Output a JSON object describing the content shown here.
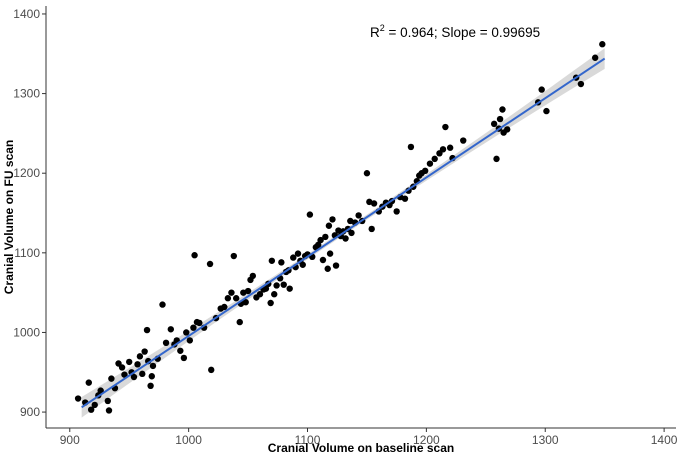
{
  "chart_data": {
    "type": "scatter",
    "xlabel": "Cranial Volume on baseline scan",
    "ylabel": "Cranial Volume on FU scan",
    "xlim": [
      880,
      1410
    ],
    "ylim": [
      880,
      1410
    ],
    "x_ticks": [
      "900",
      "1000",
      "1100",
      "1200",
      "1300",
      "1400"
    ],
    "y_ticks": [
      "900",
      "1000",
      "1100",
      "1200",
      "1300",
      "1400"
    ],
    "annotation": {
      "r_label": "R",
      "r_superscript": "2",
      "rest": " = 0.964; Slope = 0.99695"
    },
    "grid": false,
    "legend": "none",
    "fit_line": {
      "x0": 910,
      "y0": 906,
      "x1": 1350,
      "y1": 1344
    },
    "colors": {
      "points": "#000000",
      "fit": "#3366cc",
      "band": "#bfbfbf"
    },
    "points": [
      [
        907,
        917
      ],
      [
        913,
        912
      ],
      [
        916,
        937
      ],
      [
        918,
        903
      ],
      [
        921,
        909
      ],
      [
        924,
        921
      ],
      [
        926,
        927
      ],
      [
        932,
        914
      ],
      [
        933,
        902
      ],
      [
        935,
        942
      ],
      [
        938,
        930
      ],
      [
        941,
        961
      ],
      [
        944,
        956
      ],
      [
        946,
        947
      ],
      [
        950,
        963
      ],
      [
        952,
        950
      ],
      [
        954,
        944
      ],
      [
        957,
        960
      ],
      [
        959,
        970
      ],
      [
        961,
        948
      ],
      [
        963,
        976
      ],
      [
        965,
        1003
      ],
      [
        966,
        964
      ],
      [
        968,
        933
      ],
      [
        969,
        945
      ],
      [
        970,
        958
      ],
      [
        974,
        967
      ],
      [
        978,
        1035
      ],
      [
        981,
        987
      ],
      [
        985,
        1004
      ],
      [
        988,
        985
      ],
      [
        990,
        990
      ],
      [
        993,
        977
      ],
      [
        996,
        968
      ],
      [
        998,
        1000
      ],
      [
        1001,
        990
      ],
      [
        1004,
        1006
      ],
      [
        1005,
        1097
      ],
      [
        1007,
        1013
      ],
      [
        1009,
        1012
      ],
      [
        1013,
        1006
      ],
      [
        1018,
        1086
      ],
      [
        1019,
        953
      ],
      [
        1023,
        1018
      ],
      [
        1027,
        1030
      ],
      [
        1030,
        1032
      ],
      [
        1033,
        1043
      ],
      [
        1036,
        1050
      ],
      [
        1038,
        1096
      ],
      [
        1040,
        1043
      ],
      [
        1043,
        1013
      ],
      [
        1044,
        1036
      ],
      [
        1046,
        1050
      ],
      [
        1048,
        1038
      ],
      [
        1050,
        1052
      ],
      [
        1052,
        1066
      ],
      [
        1054,
        1071
      ],
      [
        1057,
        1044
      ],
      [
        1060,
        1048
      ],
      [
        1063,
        1054
      ],
      [
        1065,
        1055
      ],
      [
        1067,
        1061
      ],
      [
        1069,
        1037
      ],
      [
        1070,
        1090
      ],
      [
        1072,
        1048
      ],
      [
        1074,
        1059
      ],
      [
        1077,
        1068
      ],
      [
        1078,
        1088
      ],
      [
        1080,
        1060
      ],
      [
        1082,
        1076
      ],
      [
        1084,
        1078
      ],
      [
        1085,
        1055
      ],
      [
        1088,
        1094
      ],
      [
        1090,
        1082
      ],
      [
        1092,
        1099
      ],
      [
        1094,
        1090
      ],
      [
        1096,
        1085
      ],
      [
        1098,
        1096
      ],
      [
        1100,
        1098
      ],
      [
        1102,
        1148
      ],
      [
        1104,
        1095
      ],
      [
        1107,
        1107
      ],
      [
        1109,
        1110
      ],
      [
        1111,
        1116
      ],
      [
        1113,
        1091
      ],
      [
        1115,
        1120
      ],
      [
        1117,
        1080
      ],
      [
        1118,
        1134
      ],
      [
        1119,
        1099
      ],
      [
        1121,
        1142
      ],
      [
        1123,
        1122
      ],
      [
        1124,
        1084
      ],
      [
        1126,
        1128
      ],
      [
        1128,
        1121
      ],
      [
        1130,
        1127
      ],
      [
        1132,
        1118
      ],
      [
        1134,
        1130
      ],
      [
        1136,
        1140
      ],
      [
        1137,
        1125
      ],
      [
        1140,
        1138
      ],
      [
        1143,
        1147
      ],
      [
        1146,
        1140
      ],
      [
        1150,
        1200
      ],
      [
        1152,
        1164
      ],
      [
        1154,
        1130
      ],
      [
        1156,
        1162
      ],
      [
        1160,
        1152
      ],
      [
        1163,
        1158
      ],
      [
        1166,
        1163
      ],
      [
        1169,
        1160
      ],
      [
        1171,
        1165
      ],
      [
        1175,
        1152
      ],
      [
        1178,
        1170
      ],
      [
        1182,
        1168
      ],
      [
        1185,
        1178
      ],
      [
        1187,
        1233
      ],
      [
        1189,
        1183
      ],
      [
        1192,
        1190
      ],
      [
        1194,
        1197
      ],
      [
        1196,
        1200
      ],
      [
        1199,
        1203
      ],
      [
        1203,
        1212
      ],
      [
        1207,
        1218
      ],
      [
        1211,
        1225
      ],
      [
        1214,
        1230
      ],
      [
        1216,
        1258
      ],
      [
        1220,
        1232
      ],
      [
        1222,
        1219
      ],
      [
        1231,
        1241
      ],
      [
        1257,
        1262
      ],
      [
        1259,
        1218
      ],
      [
        1261,
        1256
      ],
      [
        1262,
        1268
      ],
      [
        1264,
        1280
      ],
      [
        1265,
        1251
      ],
      [
        1268,
        1255
      ],
      [
        1294,
        1289
      ],
      [
        1297,
        1305
      ],
      [
        1301,
        1278
      ],
      [
        1326,
        1320
      ],
      [
        1330,
        1312
      ],
      [
        1342,
        1345
      ],
      [
        1348,
        1362
      ]
    ]
  }
}
